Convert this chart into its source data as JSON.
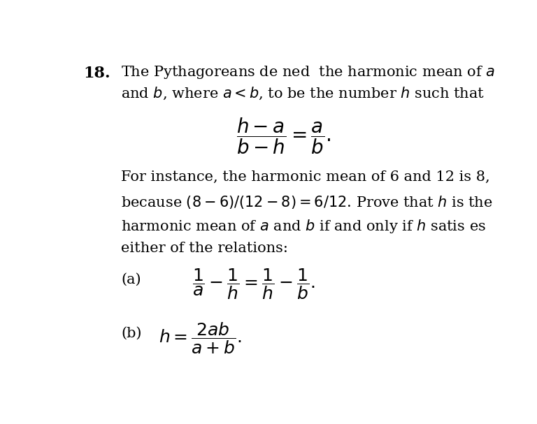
{
  "background_color": "#ffffff",
  "fig_width": 7.68,
  "fig_height": 6.07,
  "dpi": 100,
  "text_color": "#000000",
  "number_label": "18.",
  "line1": "The Pythagoreans de ned  the harmonic mean of $a$",
  "line2": "and $b$, where $a < b$, to be the number $h$ such that",
  "main_formula": "$\\dfrac{h - a}{b - h} = \\dfrac{a}{b}.$",
  "para2_line1": "For instance, the harmonic mean of 6 and 12 is 8,",
  "para2_line2": "because $(8 - 6)/(12 - 8) = 6/12$. Prove that $h$ is the",
  "para2_line3": "harmonic mean of $a$ and $b$ if and only if $h$ satis es",
  "para2_line4": "either of the relations:",
  "label_a": "(a)",
  "formula_a": "$\\dfrac{1}{a} - \\dfrac{1}{h} = \\dfrac{1}{h} - \\dfrac{1}{b}.$",
  "label_b": "(b)",
  "formula_b": "$h = \\dfrac{2ab}{a + b}.$",
  "font_size_main": 15,
  "font_size_number": 16,
  "font_size_formula": 17
}
